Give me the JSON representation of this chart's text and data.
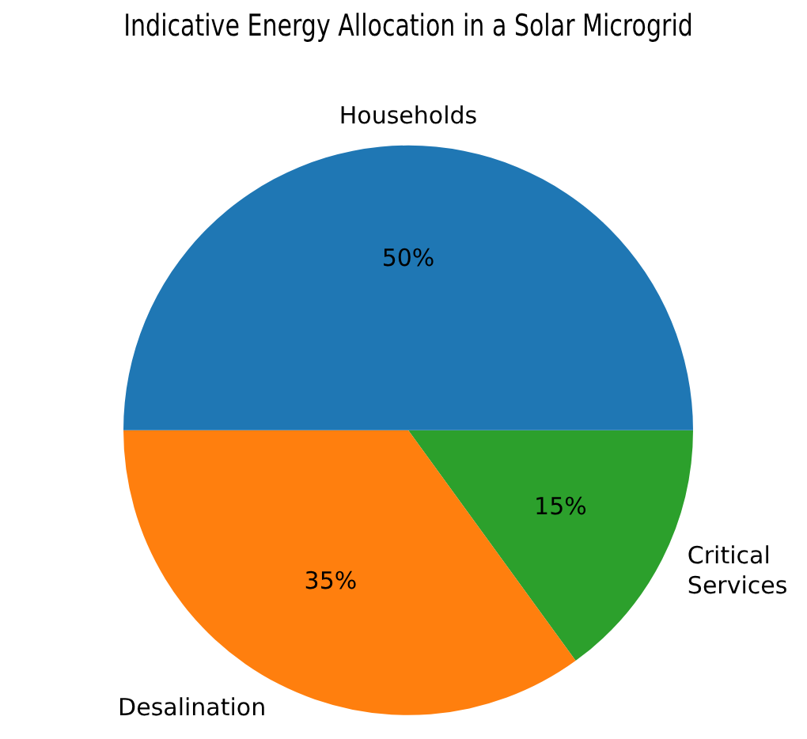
{
  "chart_data": {
    "type": "pie",
    "title": "Indicative Energy Allocation in a Solar Microgrid",
    "categories": [
      "Households",
      "Desalination",
      "Critical\nServices"
    ],
    "values": [
      50,
      35,
      15
    ],
    "colors": [
      "#1f77b4",
      "#ff7f0e",
      "#2ca02c"
    ],
    "value_labels": [
      "50%",
      "35%",
      "15%"
    ],
    "legend": false
  }
}
